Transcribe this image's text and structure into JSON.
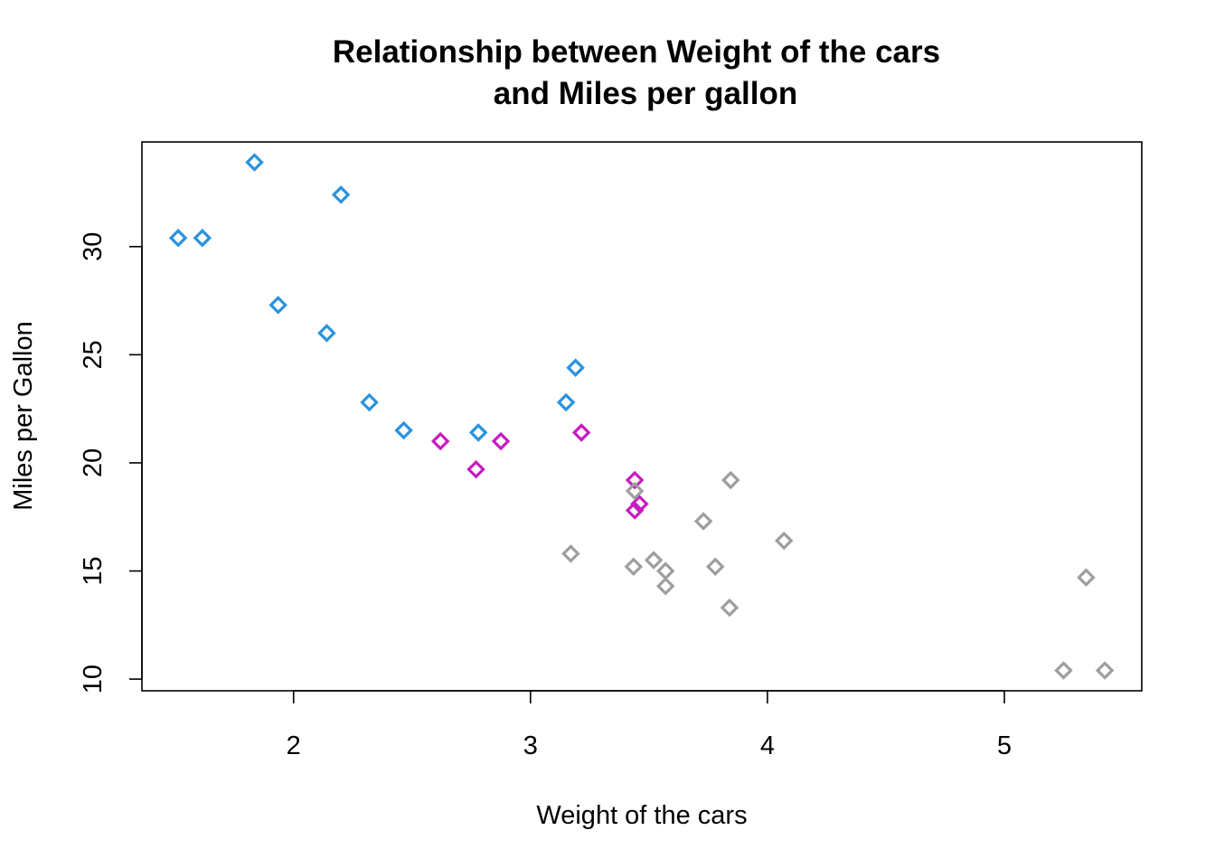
{
  "chart_data": {
    "type": "scatter",
    "title_lines": [
      "Relationship between Weight of the cars",
      "and Miles per gallon"
    ],
    "xlabel": "Weight of the cars",
    "ylabel": "Miles per Gallon",
    "xlim": [
      1.36,
      5.58
    ],
    "ylim": [
      9.46,
      34.84
    ],
    "x_ticks": [
      2,
      3,
      4,
      5
    ],
    "y_ticks": [
      10,
      15,
      20,
      25,
      30
    ],
    "grid": false,
    "legend": "none",
    "marker": "diamond-open",
    "series": [
      {
        "color": "#2a93de",
        "points": [
          {
            "x": 2.32,
            "y": 22.8
          },
          {
            "x": 3.19,
            "y": 24.4
          },
          {
            "x": 3.15,
            "y": 22.8
          },
          {
            "x": 2.2,
            "y": 32.4
          },
          {
            "x": 1.615,
            "y": 30.4
          },
          {
            "x": 1.835,
            "y": 33.9
          },
          {
            "x": 2.465,
            "y": 21.5
          },
          {
            "x": 1.935,
            "y": 27.3
          },
          {
            "x": 2.14,
            "y": 26.0
          },
          {
            "x": 1.513,
            "y": 30.4
          },
          {
            "x": 2.78,
            "y": 21.4
          }
        ]
      },
      {
        "color": "#c71bc0",
        "points": [
          {
            "x": 2.62,
            "y": 21.0
          },
          {
            "x": 2.875,
            "y": 21.0
          },
          {
            "x": 3.215,
            "y": 21.4
          },
          {
            "x": 3.46,
            "y": 18.1
          },
          {
            "x": 3.44,
            "y": 19.2
          },
          {
            "x": 3.44,
            "y": 17.8
          },
          {
            "x": 2.77,
            "y": 19.7
          }
        ]
      },
      {
        "color": "#9e9e9e",
        "points": [
          {
            "x": 3.44,
            "y": 18.7
          },
          {
            "x": 3.57,
            "y": 14.3
          },
          {
            "x": 4.07,
            "y": 16.4
          },
          {
            "x": 3.73,
            "y": 17.3
          },
          {
            "x": 3.78,
            "y": 15.2
          },
          {
            "x": 5.25,
            "y": 10.4
          },
          {
            "x": 5.424,
            "y": 10.4
          },
          {
            "x": 5.345,
            "y": 14.7
          },
          {
            "x": 3.52,
            "y": 15.5
          },
          {
            "x": 3.435,
            "y": 15.2
          },
          {
            "x": 3.84,
            "y": 13.3
          },
          {
            "x": 3.845,
            "y": 19.2
          },
          {
            "x": 3.17,
            "y": 15.8
          },
          {
            "x": 3.57,
            "y": 15.0
          }
        ]
      }
    ]
  }
}
